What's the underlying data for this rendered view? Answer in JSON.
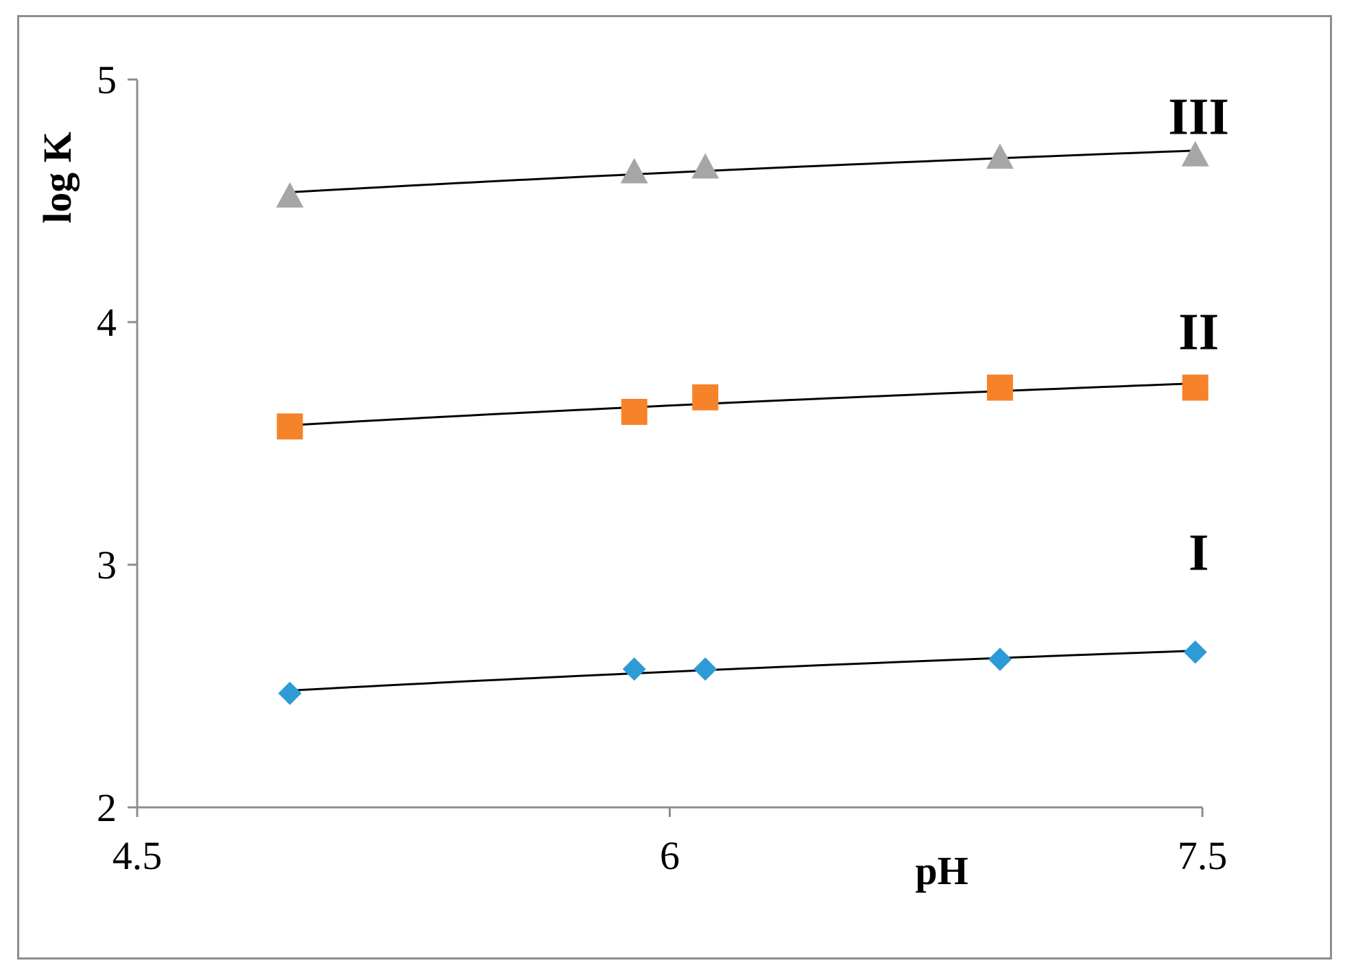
{
  "chart_data": {
    "type": "scatter",
    "title": "",
    "xlabel": "pH",
    "ylabel": "log K",
    "xlim": [
      4.5,
      7.5
    ],
    "ylim": [
      2,
      5
    ],
    "xticks": [
      "4.5",
      "6",
      "7.5"
    ],
    "yticks": [
      "2",
      "3",
      "4",
      "5"
    ],
    "grid": false,
    "legend": "none",
    "series": [
      {
        "name": "I",
        "marker": "diamond",
        "color": "#2e9bd6",
        "x": [
          4.93,
          5.9,
          6.1,
          6.93,
          7.48
        ],
        "y": [
          2.47,
          2.57,
          2.57,
          2.61,
          2.64
        ],
        "trend": true
      },
      {
        "name": "II",
        "marker": "square",
        "color": "#f6822a",
        "x": [
          4.93,
          5.9,
          6.1,
          6.93,
          7.48
        ],
        "y": [
          3.57,
          3.63,
          3.69,
          3.73,
          3.73
        ],
        "trend": true
      },
      {
        "name": "III",
        "marker": "triangle",
        "color": "#a6a6a6",
        "x": [
          4.93,
          5.9,
          6.1,
          6.93,
          7.48
        ],
        "y": [
          4.52,
          4.62,
          4.64,
          4.68,
          4.69
        ],
        "trend": true
      }
    ]
  }
}
